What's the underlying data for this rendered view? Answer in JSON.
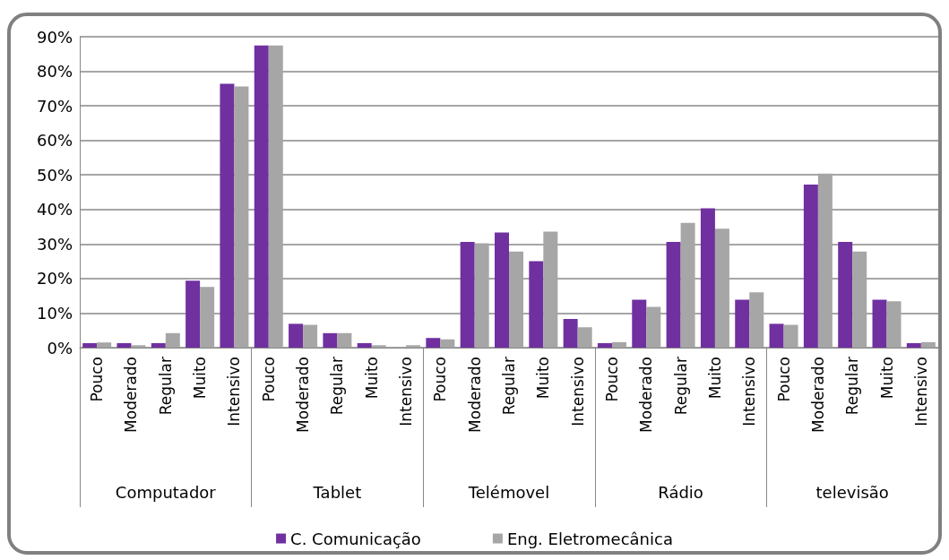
{
  "chart_data": {
    "type": "bar",
    "categories": [
      "Pouco",
      "Moderado",
      "Regular",
      "Muito",
      "Intensivo",
      "Pouco",
      "Moderado",
      "Regular",
      "Muito",
      "Intensivo",
      "Pouco",
      "Moderado",
      "Regular",
      "Muito",
      "Intensivo",
      "Pouco",
      "Moderado",
      "Regular",
      "Muito",
      "Intensivo",
      "Pouco",
      "Moderado",
      "Regular",
      "Muito",
      "Intensivo"
    ],
    "annotations": [
      "Computador",
      "Tablet",
      "Telémovel",
      "Rádio",
      "televisão"
    ],
    "series": [
      {
        "name": "C. Comunicação",
        "color": "#7030a0",
        "values": [
          1.3,
          1.3,
          1.3,
          19.4,
          76.4,
          87.5,
          6.9,
          4.2,
          1.3,
          0,
          2.8,
          30.6,
          33.3,
          25.0,
          8.3,
          1.3,
          13.9,
          30.6,
          40.3,
          13.9,
          6.9,
          47.2,
          30.6,
          13.9,
          1.3
        ]
      },
      {
        "name": "Eng. Eletromecânica",
        "color": "#a6a6a6",
        "values": [
          1.5,
          0.7,
          4.2,
          17.6,
          75.6,
          87.5,
          6.6,
          4.2,
          0.7,
          0.7,
          2.4,
          30.2,
          27.8,
          33.6,
          5.9,
          1.6,
          11.8,
          36.1,
          34.4,
          16.0,
          6.6,
          50.4,
          27.8,
          13.4,
          1.6
        ]
      }
    ],
    "ylim": [
      0,
      90
    ],
    "yticks": [
      {
        "value": 0,
        "label": "0%"
      },
      {
        "value": 10,
        "label": "10%"
      },
      {
        "value": 20,
        "label": "20%"
      },
      {
        "value": 30,
        "label": "30%"
      },
      {
        "value": 40,
        "label": "40%"
      },
      {
        "value": 50,
        "label": "50%"
      },
      {
        "value": 60,
        "label": "60%"
      },
      {
        "value": 70,
        "label": "70%"
      },
      {
        "value": 80,
        "label": "80%"
      },
      {
        "value": 90,
        "label": "90%"
      }
    ],
    "grid": "y",
    "legend": "bottom"
  }
}
